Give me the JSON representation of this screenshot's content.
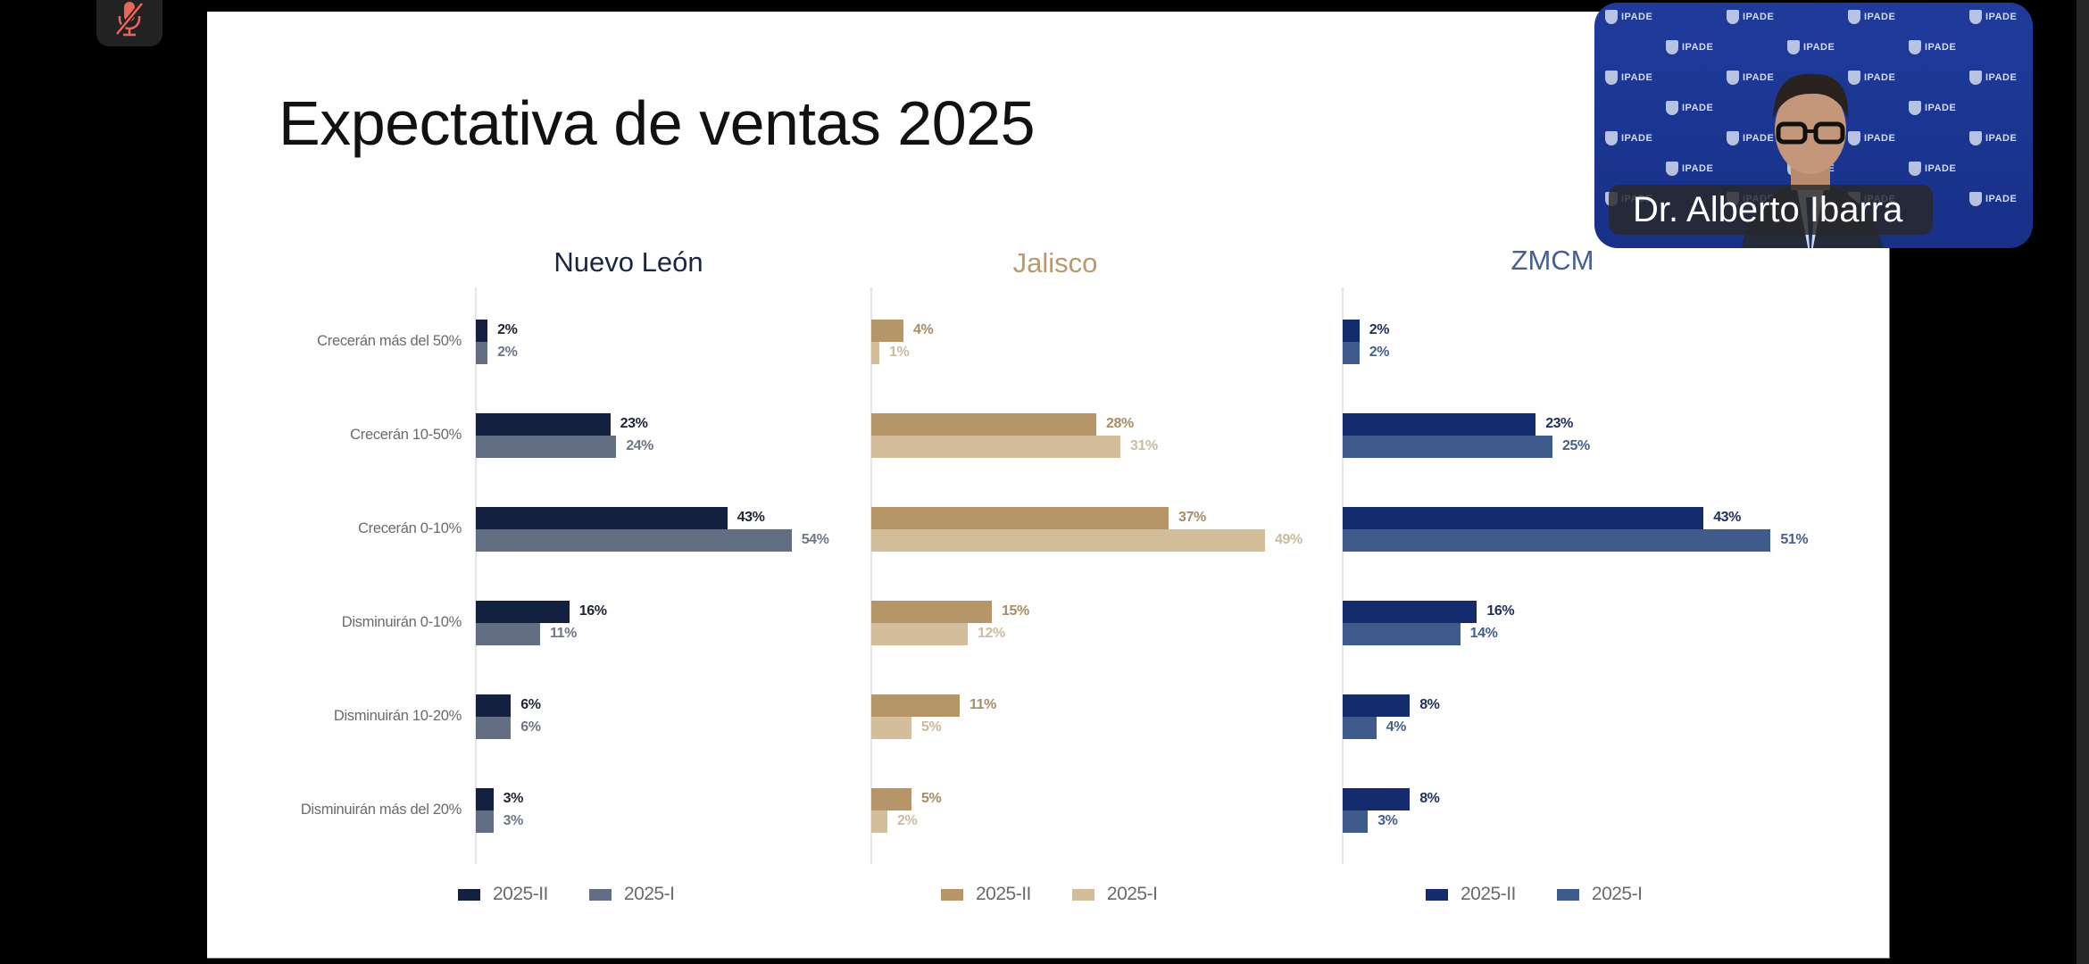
{
  "meeting": {
    "mic_button": {
      "icon": "microphone-muted-icon",
      "state": "muted",
      "color": "#e8665c"
    },
    "participant_tile": {
      "name": "Dr. Alberto Ibarra",
      "background_logo_text": "IPADE",
      "background_color": "#1c3794"
    }
  },
  "slide": {
    "title": "Expectativa de ventas 2025"
  },
  "chart_data": [
    {
      "type": "bar",
      "orientation": "horizontal",
      "title": "Nuevo León",
      "title_color": "#1a2540",
      "categories": [
        "Crecerán más del 50%",
        "Crecerán 10-50%",
        "Crecerán 0-10%",
        "Disminuirán 0-10%",
        "Disminuirán 10-20%",
        "Disminuirán más del 20%"
      ],
      "series": [
        {
          "name": "2025-II",
          "color": "#13203f",
          "label_color": "#1e2433",
          "values": [
            2,
            23,
            43,
            16,
            6,
            3
          ],
          "labels": [
            "2%",
            "23%",
            "43%",
            "16%",
            "6%",
            "3%"
          ]
        },
        {
          "name": "2025-I",
          "color": "#636e83",
          "label_color": "#6f7686",
          "values": [
            2,
            24,
            54,
            11,
            6,
            3
          ],
          "labels": [
            "2%",
            "24%",
            "54%",
            "11%",
            "6%",
            "3%"
          ]
        }
      ],
      "xlim": [
        0,
        55
      ],
      "legend": {
        "position": "bottom",
        "items": [
          "2025-II",
          "2025-I"
        ]
      },
      "grid": false
    },
    {
      "type": "bar",
      "orientation": "horizontal",
      "title": "Jalisco",
      "title_color": "#b69a6e",
      "categories": [
        "Crecerán más del 50%",
        "Crecerán 10-50%",
        "Crecerán 0-10%",
        "Disminuirán 0-10%",
        "Disminuirán 10-20%",
        "Disminuirán más del 20%"
      ],
      "series": [
        {
          "name": "2025-II",
          "color": "#b69668",
          "label_color": "#a88d66",
          "values": [
            4,
            28,
            37,
            15,
            11,
            5
          ],
          "labels": [
            "4%",
            "28%",
            "37%",
            "15%",
            "11%",
            "5%"
          ]
        },
        {
          "name": "2025-I",
          "color": "#d3bd9b",
          "label_color": "#cdbb9f",
          "values": [
            1,
            31,
            49,
            12,
            5,
            2
          ],
          "labels": [
            "1%",
            "31%",
            "49%",
            "12%",
            "5%",
            "2%"
          ]
        }
      ],
      "xlim": [
        0,
        55
      ],
      "legend": {
        "position": "bottom",
        "items": [
          "2025-II",
          "2025-I"
        ]
      },
      "grid": false
    },
    {
      "type": "bar",
      "orientation": "horizontal",
      "title": "ZMCM",
      "title_color": "#45608f",
      "categories": [
        "Crecerán más del 50%",
        "Crecerán 10-50%",
        "Crecerán 0-10%",
        "Disminuirán 0-10%",
        "Disminuirán 10-20%",
        "Disminuirán más del 20%"
      ],
      "series": [
        {
          "name": "2025-II",
          "color": "#142c6e",
          "label_color": "#1e2f5e",
          "values": [
            2,
            23,
            43,
            16,
            8,
            8
          ],
          "labels": [
            "2%",
            "23%",
            "43%",
            "16%",
            "8%",
            "8%"
          ]
        },
        {
          "name": "2025-I",
          "color": "#3f5b8c",
          "label_color": "#46608e",
          "values": [
            2,
            25,
            51,
            14,
            4,
            3
          ],
          "labels": [
            "2%",
            "25%",
            "51%",
            "14%",
            "4%",
            "3%"
          ]
        }
      ],
      "xlim": [
        0,
        55
      ],
      "legend": {
        "position": "bottom",
        "items": [
          "2025-II",
          "2025-I"
        ]
      },
      "grid": false
    }
  ]
}
